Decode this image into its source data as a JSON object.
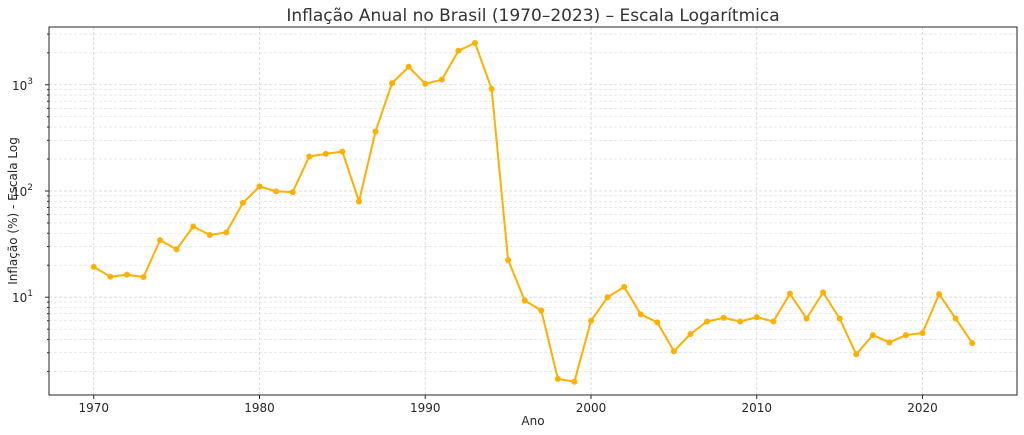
{
  "chart_data": {
    "type": "line",
    "title": "Inflação Anual no Brasil (1970–2023) – Escala Logarítmica",
    "xlabel": "Ano",
    "ylabel": "Inflação (%) - Escala Log",
    "y_scale": "log",
    "xlim": [
      1967.3,
      2025.7
    ],
    "ylim": [
      1.2,
      3500
    ],
    "grid": true,
    "x_ticks": [
      1970,
      1980,
      1990,
      2000,
      2010,
      2020
    ],
    "y_ticks": [
      {
        "value": 10,
        "base": "10",
        "exp": "1"
      },
      {
        "value": 100,
        "base": "10",
        "exp": "2"
      },
      {
        "value": 1000,
        "base": "10",
        "exp": "3"
      }
    ],
    "series": [
      {
        "color": "#FFB000",
        "x": [
          1970,
          1971,
          1972,
          1973,
          1974,
          1975,
          1976,
          1977,
          1978,
          1979,
          1980,
          1981,
          1982,
          1983,
          1984,
          1985,
          1986,
          1987,
          1988,
          1989,
          1990,
          1991,
          1992,
          1993,
          1994,
          1995,
          1996,
          1997,
          1998,
          1999,
          2000,
          2001,
          2002,
          2003,
          2004,
          2005,
          2006,
          2007,
          2008,
          2009,
          2010,
          2011,
          2012,
          2013,
          2014,
          2015,
          2016,
          2017,
          2018,
          2019,
          2020,
          2021,
          2022,
          2023
        ],
        "values": [
          19.3,
          15.6,
          16.3,
          15.5,
          34.5,
          28.2,
          46.3,
          38.5,
          40.8,
          77.2,
          110.2,
          99.3,
          97.6,
          211.0,
          223.8,
          235.1,
          79.7,
          363.4,
          1037.6,
          1477.0,
          1022.0,
          1117.0,
          2090.0,
          2477.0,
          916.0,
          22.4,
          9.3,
          7.5,
          1.7,
          1.6,
          6.0,
          10.0,
          12.5,
          6.9,
          5.8,
          3.1,
          4.5,
          5.9,
          6.4,
          5.9,
          6.5,
          5.9,
          10.8,
          6.3,
          11.1,
          6.3,
          2.9,
          4.4,
          3.75,
          4.4,
          4.6,
          10.7,
          6.3,
          3.7
        ]
      }
    ]
  }
}
